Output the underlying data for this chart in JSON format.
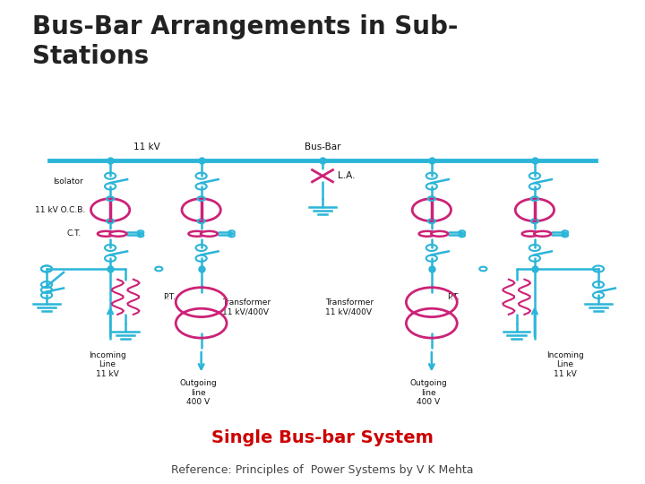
{
  "title": "Bus-Bar Arrangements in Sub-\nStations",
  "subtitle": "Single Bus-bar System",
  "reference": "Reference: Principles of  Power Systems by V K Mehta",
  "outer_bg": "#ffffff",
  "diagram_bg": "#f5f5e0",
  "title_color": "#222222",
  "subtitle_color": "#cc0000",
  "ref_color": "#444444",
  "bus_color": "#2bb5d8",
  "component_color": "#cc2277",
  "label_color": "#111111",
  "title_fontsize": 20,
  "subtitle_fontsize": 14,
  "ref_fontsize": 9
}
